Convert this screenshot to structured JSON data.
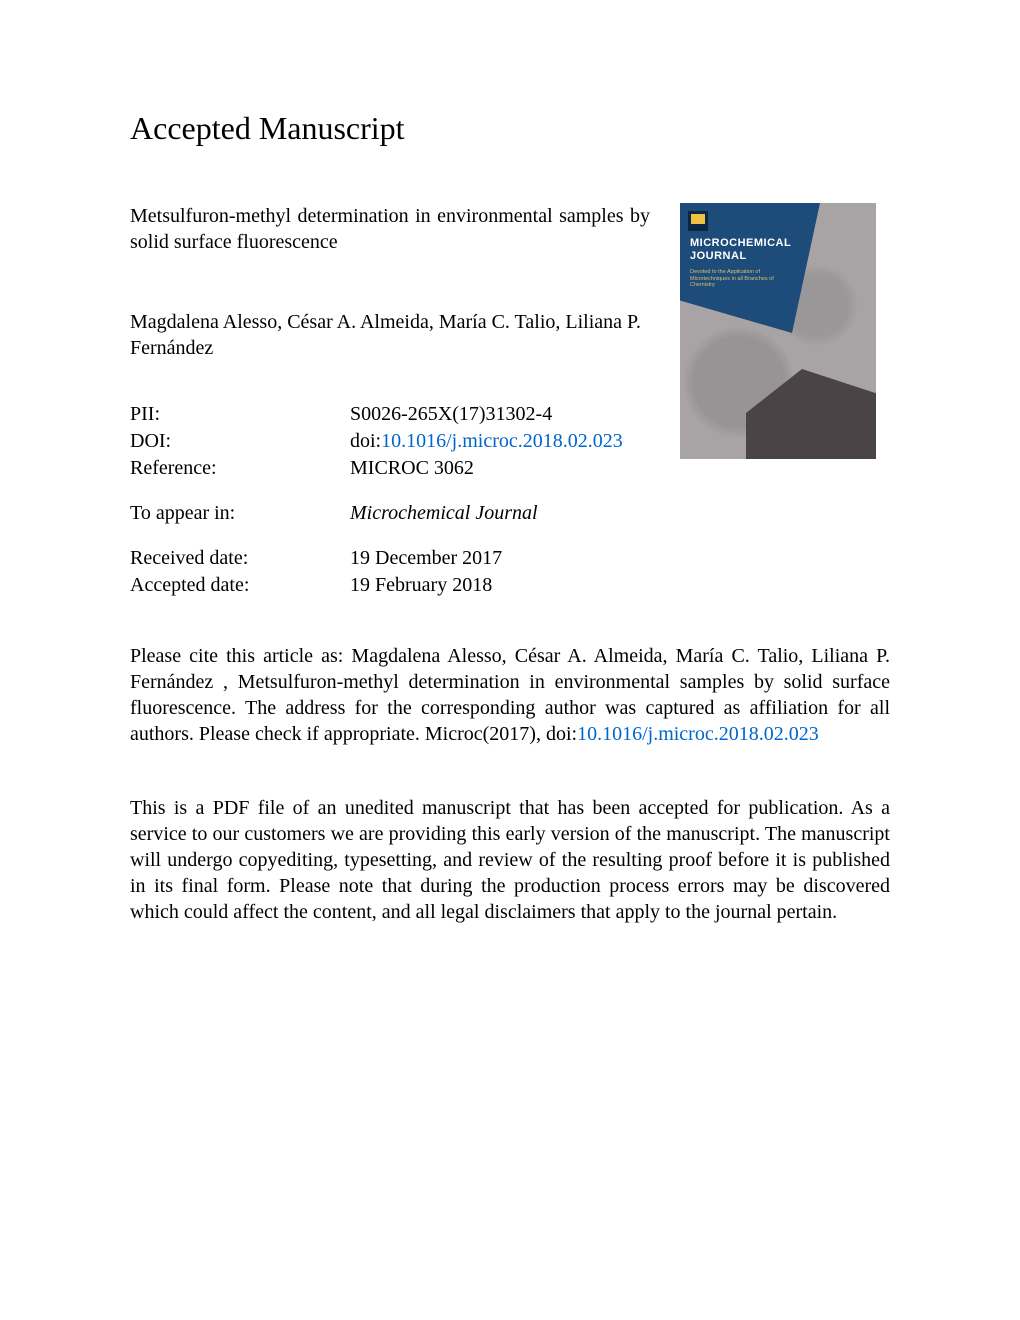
{
  "heading": "Accepted Manuscript",
  "article_title": "Metsulfuron-methyl determination in environmental samples by solid surface fluorescence",
  "authors": "Magdalena Alesso, César A. Almeida, María C. Talio, Liliana P. Fernández",
  "meta": {
    "pii_label": "PII:",
    "pii_value": "S0026-265X(17)31302-4",
    "doi_label": "DOI:",
    "doi_prefix": "doi:",
    "doi_link": "10.1016/j.microc.2018.02.023",
    "reference_label": "Reference:",
    "reference_value": "MICROC 3062",
    "appear_label": "To appear in:",
    "appear_value": "Microchemical Journal",
    "received_label": "Received date:",
    "received_value": "19 December 2017",
    "accepted_label": "Accepted date:",
    "accepted_value": "19 February 2018"
  },
  "journal_cover": {
    "title_line1": "MICROCHEMICAL",
    "title_line2": "JOURNAL",
    "subtitle": "Devoted to the Application of Microtechniques in all Branches of Chemistry",
    "colors": {
      "background": "#a8a4a6",
      "blue_poly": "#1d4b7a",
      "dark_poly": "#4a4446",
      "title_color": "#ffffff",
      "subtitle_color": "#d5c070"
    }
  },
  "citation": {
    "prefix": "Please cite this article as: Magdalena Alesso, César A. Almeida, María C. Talio, Liliana P. Fernández , Metsulfuron-methyl determination in environmental samples by solid surface fluorescence. The address for the corresponding author was captured as affiliation for all authors. Please check if appropriate. Microc(2017), doi:",
    "link": "10.1016/j.microc.2018.02.023"
  },
  "disclaimer": "This is a PDF file of an unedited manuscript that has been accepted for publication. As a service to our customers we are providing this early version of the manuscript. The manuscript will undergo copyediting, typesetting, and review of the resulting proof before it is published in its final form. Please note that during the production process errors may be discovered which could affect the content, and all legal disclaimers that apply to the journal pertain.",
  "colors": {
    "text": "#000000",
    "link": "#0066cc",
    "background": "#ffffff"
  },
  "typography": {
    "font_family": "Times New Roman",
    "heading_fontsize": 32,
    "body_fontsize": 20
  }
}
